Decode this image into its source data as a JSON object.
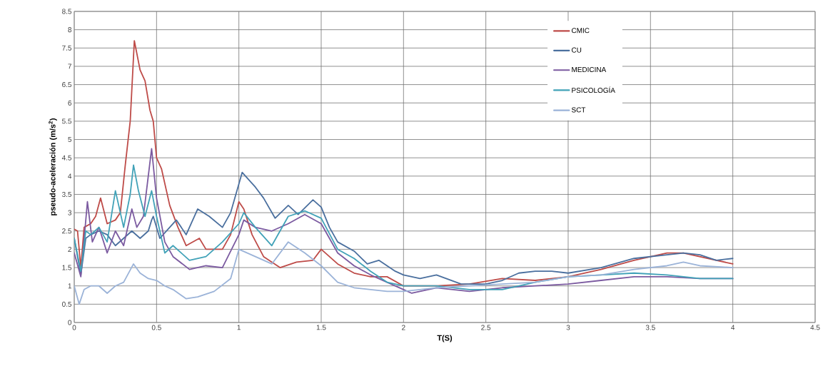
{
  "chart_data": {
    "type": "line",
    "xlabel": "T(S)",
    "ylabel": "pseudo-aceleración (m/s$^{2}$)",
    "xlim": [
      0,
      4.5
    ],
    "ylim": [
      0,
      8.5
    ],
    "xticks": [
      0,
      0.5,
      1,
      1.5,
      2,
      2.5,
      3,
      3.5,
      4,
      4.5
    ],
    "yticks": [
      0,
      0.5,
      1,
      1.5,
      2,
      2.5,
      3,
      3.5,
      4,
      4.5,
      5,
      5.5,
      6,
      6.5,
      7,
      7.5,
      8,
      8.5
    ],
    "grid": true,
    "legend": "top right",
    "marker": "none",
    "line_style": "solid",
    "series": [
      {
        "name": "CMIC",
        "color": "#be4b48",
        "x": [
          0,
          0.02,
          0.04,
          0.06,
          0.1,
          0.13,
          0.16,
          0.2,
          0.25,
          0.28,
          0.31,
          0.34,
          0.365,
          0.4,
          0.43,
          0.46,
          0.48,
          0.5,
          0.53,
          0.58,
          0.63,
          0.68,
          0.72,
          0.76,
          0.8,
          0.9,
          0.95,
          1.0,
          1.03,
          1.08,
          1.15,
          1.25,
          1.35,
          1.45,
          1.5,
          1.6,
          1.7,
          1.8,
          1.9,
          2.0,
          2.2,
          2.4,
          2.6,
          2.8,
          3.0,
          3.2,
          3.4,
          3.6,
          3.7,
          3.85,
          4.0
        ],
        "values": [
          2.55,
          2.5,
          1.5,
          2.6,
          2.7,
          2.9,
          3.4,
          2.7,
          2.8,
          3.0,
          4.3,
          5.5,
          7.7,
          6.9,
          6.6,
          5.8,
          5.5,
          4.5,
          4.2,
          3.2,
          2.6,
          2.1,
          2.2,
          2.3,
          2.0,
          2.0,
          2.4,
          3.3,
          3.1,
          2.4,
          1.8,
          1.5,
          1.65,
          1.7,
          2.0,
          1.6,
          1.35,
          1.25,
          1.25,
          1.0,
          1.0,
          1.05,
          1.2,
          1.15,
          1.25,
          1.45,
          1.7,
          1.9,
          1.9,
          1.75,
          1.6
        ]
      },
      {
        "name": "CU",
        "color": "#4a6f9e",
        "x": [
          0,
          0.04,
          0.07,
          0.1,
          0.15,
          0.2,
          0.25,
          0.3,
          0.35,
          0.4,
          0.45,
          0.47,
          0.48,
          0.49,
          0.52,
          0.58,
          0.62,
          0.68,
          0.75,
          0.82,
          0.9,
          0.95,
          1.02,
          1.1,
          1.15,
          1.22,
          1.3,
          1.36,
          1.45,
          1.5,
          1.55,
          1.6,
          1.7,
          1.78,
          1.85,
          1.95,
          2.0,
          2.1,
          2.2,
          2.35,
          2.5,
          2.6,
          2.7,
          2.8,
          2.9,
          3.0,
          3.2,
          3.4,
          3.6,
          3.7,
          3.8,
          3.9,
          4.0
        ],
        "values": [
          2.3,
          1.3,
          2.3,
          2.4,
          2.5,
          2.4,
          2.1,
          2.3,
          2.5,
          2.3,
          2.5,
          2.8,
          2.9,
          2.75,
          2.3,
          2.6,
          2.8,
          2.4,
          3.1,
          2.9,
          2.6,
          3.0,
          4.1,
          3.7,
          3.4,
          2.85,
          3.2,
          2.95,
          3.35,
          3.15,
          2.6,
          2.2,
          1.95,
          1.6,
          1.7,
          1.4,
          1.3,
          1.2,
          1.3,
          1.05,
          1.05,
          1.15,
          1.35,
          1.4,
          1.4,
          1.35,
          1.5,
          1.75,
          1.85,
          1.9,
          1.85,
          1.7,
          1.75
        ]
      },
      {
        "name": "MEDICINA",
        "color": "#7b5aa0",
        "x": [
          0,
          0.04,
          0.08,
          0.11,
          0.15,
          0.2,
          0.25,
          0.3,
          0.35,
          0.38,
          0.42,
          0.47,
          0.5,
          0.55,
          0.6,
          0.7,
          0.8,
          0.9,
          1.0,
          1.03,
          1.1,
          1.2,
          1.3,
          1.4,
          1.5,
          1.6,
          1.7,
          1.8,
          1.9,
          2.0,
          2.05,
          2.2,
          2.4,
          2.6,
          2.8,
          3.0,
          3.2,
          3.4,
          3.6,
          3.8,
          4.0
        ],
        "values": [
          1.9,
          1.25,
          3.3,
          2.2,
          2.6,
          1.9,
          2.5,
          2.1,
          3.1,
          2.6,
          2.9,
          4.75,
          3.4,
          2.2,
          1.8,
          1.45,
          1.55,
          1.5,
          2.4,
          2.8,
          2.6,
          2.5,
          2.7,
          2.95,
          2.7,
          1.9,
          1.55,
          1.3,
          1.1,
          0.9,
          0.8,
          0.95,
          0.85,
          0.95,
          1.0,
          1.05,
          1.15,
          1.25,
          1.25,
          1.2,
          1.2
        ]
      },
      {
        "name": "PSICOLOGÍA",
        "color": "#41a2b8",
        "x": [
          0,
          0.04,
          0.07,
          0.1,
          0.15,
          0.2,
          0.25,
          0.3,
          0.34,
          0.36,
          0.39,
          0.43,
          0.47,
          0.5,
          0.55,
          0.6,
          0.7,
          0.8,
          0.9,
          1.0,
          1.03,
          1.1,
          1.2,
          1.3,
          1.4,
          1.5,
          1.6,
          1.7,
          1.8,
          1.9,
          2.0,
          2.2,
          2.4,
          2.6,
          2.8,
          3.0,
          3.2,
          3.4,
          3.6,
          3.8,
          4.0
        ],
        "values": [
          2.3,
          1.4,
          2.5,
          2.4,
          2.6,
          2.2,
          3.6,
          2.6,
          3.5,
          4.3,
          3.6,
          2.9,
          3.6,
          2.9,
          1.9,
          2.1,
          1.7,
          1.8,
          2.2,
          2.7,
          3.0,
          2.6,
          2.1,
          2.9,
          3.05,
          2.85,
          2.0,
          1.75,
          1.4,
          1.1,
          1.0,
          1.0,
          0.9,
          0.9,
          1.1,
          1.25,
          1.3,
          1.35,
          1.3,
          1.2,
          1.2
        ]
      },
      {
        "name": "SCT",
        "color": "#9bb3d8",
        "x": [
          0,
          0.03,
          0.06,
          0.1,
          0.15,
          0.2,
          0.25,
          0.3,
          0.36,
          0.4,
          0.45,
          0.5,
          0.55,
          0.6,
          0.68,
          0.75,
          0.85,
          0.95,
          1.0,
          1.1,
          1.2,
          1.3,
          1.4,
          1.5,
          1.6,
          1.7,
          1.8,
          1.9,
          2.0,
          2.2,
          2.4,
          2.6,
          2.8,
          3.0,
          3.2,
          3.4,
          3.6,
          3.7,
          3.8,
          4.0
        ],
        "values": [
          1.0,
          0.5,
          0.9,
          1.0,
          1.0,
          0.8,
          1.0,
          1.1,
          1.6,
          1.35,
          1.2,
          1.15,
          1.0,
          0.9,
          0.65,
          0.7,
          0.85,
          1.2,
          2.0,
          1.8,
          1.6,
          2.2,
          1.9,
          1.55,
          1.1,
          0.95,
          0.9,
          0.85,
          0.85,
          0.95,
          1.0,
          1.05,
          1.1,
          1.25,
          1.3,
          1.45,
          1.55,
          1.65,
          1.55,
          1.5
        ]
      }
    ]
  }
}
